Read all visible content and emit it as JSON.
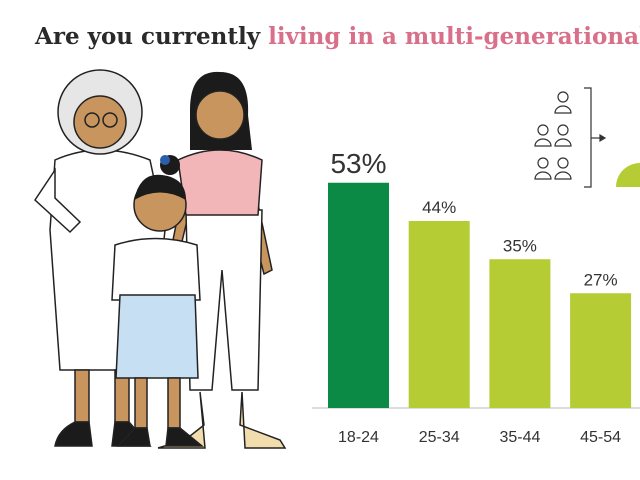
{
  "chart_data": {
    "type": "bar",
    "title_parts": [
      "Are you currently ",
      "living in a multi-generational"
    ],
    "categories": [
      "18-24",
      "25-34",
      "35-44",
      "45-54"
    ],
    "values": [
      53,
      44,
      35,
      27
    ],
    "value_labels": [
      "53%",
      "44%",
      "35%",
      "27%"
    ],
    "colors": [
      "#0b8a46",
      "#b5cc34",
      "#b5cc34",
      "#b5cc34"
    ]
  }
}
